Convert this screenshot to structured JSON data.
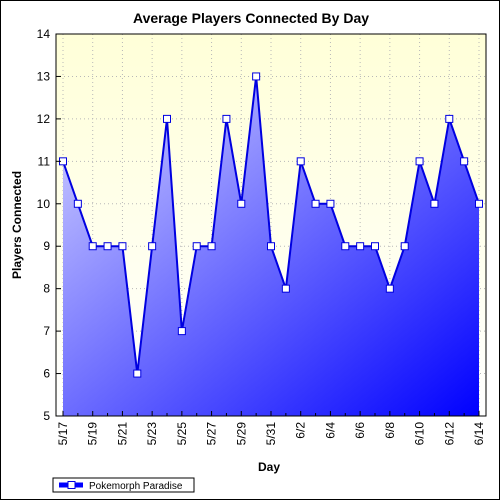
{
  "chart_data": {
    "type": "area",
    "title": "Average Players Connected By Day",
    "xlabel": "Day",
    "ylabel": "Players Connected",
    "ylim": [
      5,
      14
    ],
    "yticks": [
      5,
      6,
      7,
      8,
      9,
      10,
      11,
      12,
      13,
      14
    ],
    "x": [
      "5/17",
      "5/18",
      "5/19",
      "5/20",
      "5/21",
      "5/22",
      "5/23",
      "5/24",
      "5/25",
      "5/26",
      "5/27",
      "5/28",
      "5/29",
      "5/30",
      "5/31",
      "6/1",
      "6/2",
      "6/3",
      "6/4",
      "6/5",
      "6/6",
      "6/7",
      "6/8",
      "6/9",
      "6/10",
      "6/11",
      "6/12",
      "6/13",
      "6/14"
    ],
    "xtick_labels": [
      "5/17",
      "",
      "5/19",
      "",
      "5/21",
      "",
      "5/23",
      "",
      "5/25",
      "",
      "5/27",
      "",
      "5/29",
      "",
      "5/31",
      "",
      "6/2",
      "",
      "6/4",
      "",
      "6/6",
      "",
      "6/8",
      "",
      "6/10",
      "",
      "6/12",
      "",
      "6/14"
    ],
    "series": [
      {
        "name": "Pokemorph Paradise",
        "values": [
          11,
          10,
          9,
          9,
          9,
          6,
          9,
          12,
          7,
          9,
          9,
          12,
          10,
          13,
          9,
          8,
          11,
          10,
          10,
          9,
          9,
          9,
          8,
          9,
          11,
          10,
          12,
          11,
          10
        ]
      }
    ],
    "grid": true,
    "legend": "bottom-left",
    "colors": {
      "plot_bg_top": "#ffffd8",
      "plot_bg_bottom": "#ffffff",
      "line": "#0000e0",
      "fill_light": "#d8d8ff",
      "fill_dark": "#0000ff",
      "marker_fill": "#ffffff",
      "grid": "#b8b8b8"
    }
  }
}
